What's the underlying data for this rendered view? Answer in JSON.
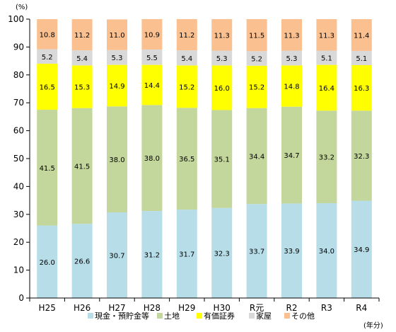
{
  "chart_data": {
    "type": "bar",
    "stacked": true,
    "y_unit": "(%)",
    "x_unit": "(年分)",
    "ylim": [
      0,
      100
    ],
    "yticks": [
      0,
      10,
      20,
      30,
      40,
      50,
      60,
      70,
      80,
      90,
      100
    ],
    "grid": false,
    "legend_position": "bottom",
    "categories": [
      "H25",
      "H26",
      "H27",
      "H28",
      "H29",
      "H30",
      "R元",
      "R2",
      "R3",
      "R4"
    ],
    "series": [
      {
        "name": "現金・預貯金等",
        "color": "#b7dde8",
        "values": [
          26.0,
          26.6,
          30.7,
          31.2,
          31.7,
          32.3,
          33.7,
          33.9,
          34.0,
          34.9
        ]
      },
      {
        "name": "土地",
        "color": "#c3d69b",
        "values": [
          41.5,
          41.5,
          38.0,
          38.0,
          36.5,
          35.1,
          34.4,
          34.7,
          33.2,
          32.3
        ]
      },
      {
        "name": "有価証券",
        "color": "#ffff00",
        "values": [
          16.5,
          15.3,
          14.9,
          14.4,
          15.2,
          16.0,
          15.2,
          14.8,
          16.4,
          16.3
        ]
      },
      {
        "name": "家屋",
        "color": "#d9d9d9",
        "values": [
          5.2,
          5.4,
          5.3,
          5.5,
          5.4,
          5.3,
          5.2,
          5.3,
          5.1,
          5.1
        ]
      },
      {
        "name": "その他",
        "color": "#fac090",
        "values": [
          10.8,
          11.2,
          11.0,
          10.9,
          11.2,
          11.3,
          11.5,
          11.3,
          11.3,
          11.4
        ]
      }
    ]
  }
}
